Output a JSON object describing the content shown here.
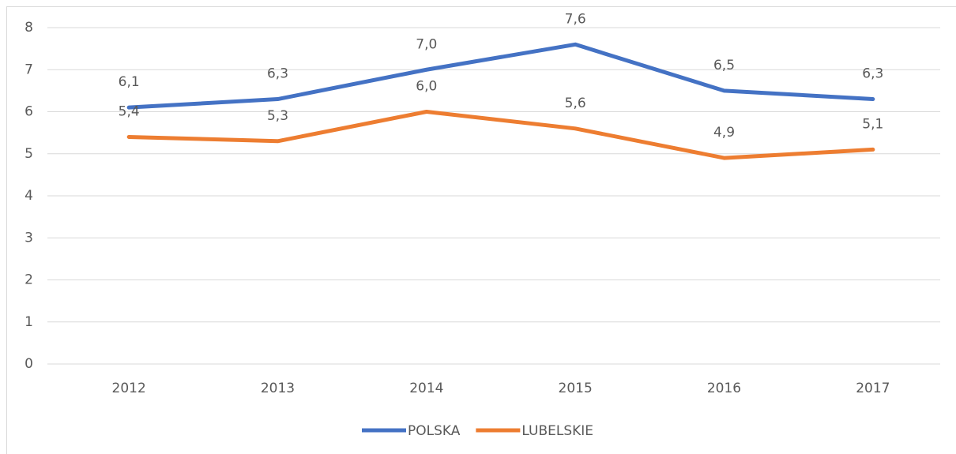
{
  "chart_data": {
    "type": "line",
    "categories": [
      "2012",
      "2013",
      "2014",
      "2015",
      "2016",
      "2017"
    ],
    "series": [
      {
        "name": "POLSKA",
        "color": "#4472c4",
        "values": [
          6.1,
          6.3,
          7.0,
          7.6,
          6.5,
          6.3
        ],
        "value_labels": [
          "6,1",
          "6,3",
          "7,0",
          "7,6",
          "6,5",
          "6,3"
        ]
      },
      {
        "name": "LUBELSKIE",
        "color": "#ed7d31",
        "values": [
          5.4,
          5.3,
          6.0,
          5.6,
          4.9,
          5.1
        ],
        "value_labels": [
          "5,4",
          "5,3",
          "6,0",
          "5,6",
          "4,9",
          "5,1"
        ]
      }
    ],
    "ylim": [
      0,
      8
    ],
    "yticks": [
      0,
      1,
      2,
      3,
      4,
      5,
      6,
      7,
      8
    ],
    "grid": true,
    "legend": "bottom"
  }
}
